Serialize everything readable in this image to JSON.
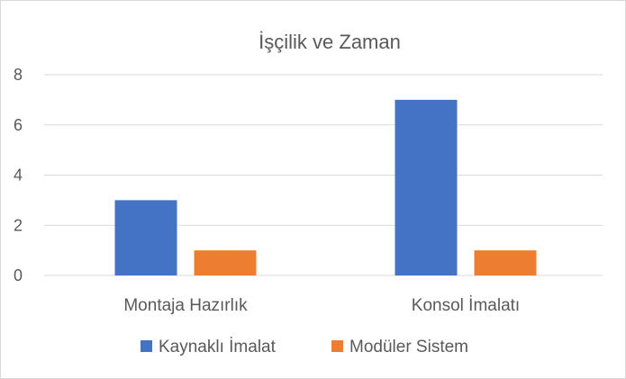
{
  "chart_data": {
    "type": "bar",
    "title": "İşçilik ve Zaman",
    "categories": [
      "Montaja Hazırlık",
      "Konsol İmalatı"
    ],
    "series": [
      {
        "name": "Kaynaklı İmalat",
        "values": [
          3,
          7
        ],
        "color": "#4472C4"
      },
      {
        "name": "Modüler Sistem",
        "values": [
          1,
          1
        ],
        "color": "#ED7D31"
      }
    ],
    "ylim": [
      0,
      8
    ],
    "yticks": [
      0,
      2,
      4,
      6,
      8
    ],
    "grid": true,
    "legend": "bottom",
    "gridColor": "#d9d9d9"
  }
}
